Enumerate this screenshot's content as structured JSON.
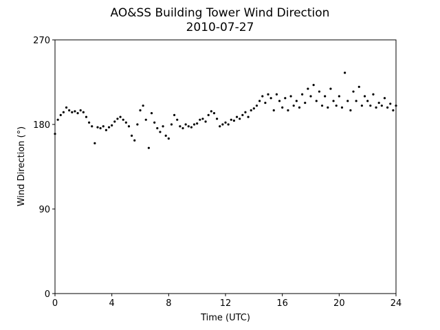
{
  "chart_data": {
    "type": "scatter",
    "title": "AO&SS Building Tower Wind Direction",
    "subtitle": "2010-07-27",
    "x_label": "Time (UTC)",
    "y_label": "Wind Direction (°)",
    "color": "#000000",
    "xlim": [
      0,
      24
    ],
    "xticks": [
      0,
      4,
      8,
      12,
      16,
      20,
      24
    ],
    "ylim": [
      0,
      270
    ],
    "yticks": [
      0,
      90,
      180,
      270
    ],
    "x": [
      0,
      0.2,
      0.4,
      0.6,
      0.8,
      1.0,
      1.2,
      1.4,
      1.6,
      1.8,
      2.0,
      2.2,
      2.4,
      2.6,
      2.8,
      3.0,
      3.2,
      3.4,
      3.6,
      3.8,
      4.0,
      4.2,
      4.4,
      4.6,
      4.8,
      5.0,
      5.2,
      5.4,
      5.6,
      5.8,
      6.0,
      6.2,
      6.4,
      6.6,
      6.8,
      7.0,
      7.2,
      7.4,
      7.6,
      7.8,
      8.0,
      8.2,
      8.4,
      8.6,
      8.8,
      9.0,
      9.2,
      9.4,
      9.6,
      9.8,
      10.0,
      10.2,
      10.4,
      10.6,
      10.8,
      11.0,
      11.2,
      11.4,
      11.6,
      11.8,
      12.0,
      12.2,
      12.4,
      12.6,
      12.8,
      13.0,
      13.2,
      13.4,
      13.6,
      13.8,
      14.0,
      14.2,
      14.4,
      14.6,
      14.8,
      15.0,
      15.2,
      15.4,
      15.6,
      15.8,
      16.0,
      16.2,
      16.4,
      16.6,
      16.8,
      17.0,
      17.2,
      17.4,
      17.6,
      17.8,
      18.0,
      18.2,
      18.4,
      18.6,
      18.8,
      19.0,
      19.2,
      19.4,
      19.6,
      19.8,
      20.0,
      20.2,
      20.4,
      20.6,
      20.8,
      21.0,
      21.2,
      21.4,
      21.6,
      21.8,
      22.0,
      22.2,
      22.4,
      22.6,
      22.8,
      23.0,
      23.2,
      23.4,
      23.6,
      23.8,
      24.0
    ],
    "y": [
      170,
      185,
      190,
      193,
      198,
      195,
      193,
      194,
      192,
      195,
      193,
      188,
      182,
      178,
      160,
      177,
      176,
      178,
      174,
      177,
      179,
      183,
      186,
      188,
      185,
      182,
      178,
      168,
      163,
      180,
      195,
      200,
      185,
      155,
      192,
      182,
      176,
      172,
      178,
      168,
      165,
      180,
      190,
      185,
      178,
      176,
      180,
      178,
      177,
      180,
      181,
      185,
      186,
      183,
      190,
      194,
      192,
      186,
      178,
      180,
      182,
      180,
      185,
      184,
      188,
      186,
      190,
      193,
      188,
      195,
      197,
      200,
      205,
      210,
      203,
      212,
      208,
      195,
      212,
      205,
      198,
      208,
      195,
      210,
      200,
      205,
      198,
      212,
      203,
      218,
      210,
      222,
      205,
      215,
      200,
      210,
      198,
      218,
      205,
      200,
      210,
      198,
      235,
      205,
      195,
      215,
      205,
      220,
      200,
      210,
      205,
      200,
      212,
      198,
      203,
      200,
      208,
      198,
      202,
      195,
      200
    ]
  }
}
